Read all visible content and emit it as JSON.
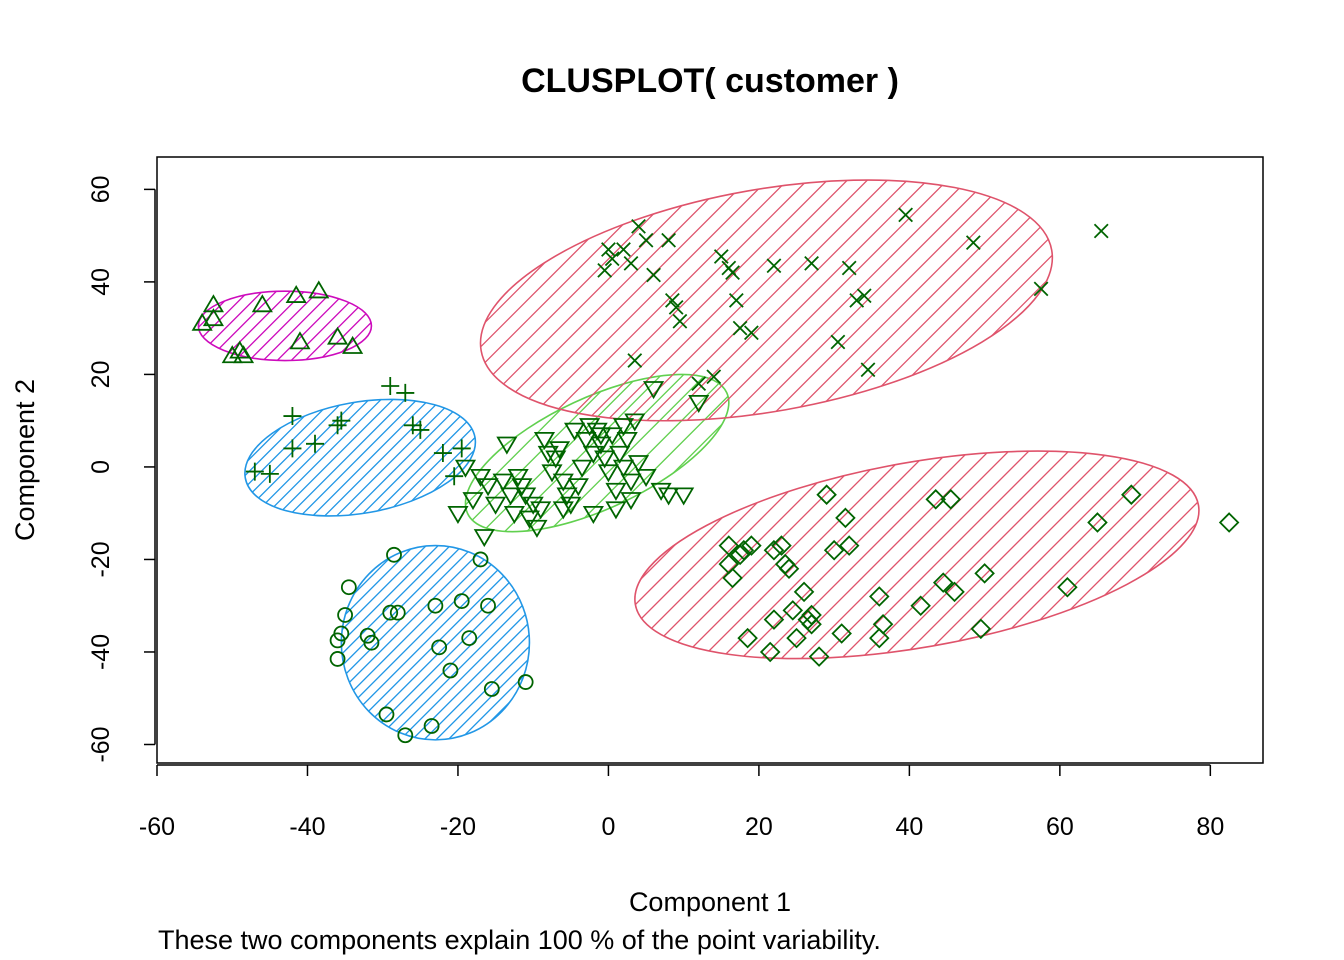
{
  "chart_data": {
    "type": "scatter",
    "title": "CLUSPLOT( customer )",
    "xlabel": "Component 1",
    "ylabel": "Component 2",
    "subtitle": "These two components explain 100 % of the point variability.",
    "xlim": [
      -60,
      87
    ],
    "ylim": [
      -64,
      67
    ],
    "xticks": [
      "-60",
      "-40",
      "-20",
      "0",
      "20",
      "40",
      "60",
      "80"
    ],
    "yticks": [
      "-60",
      "-40",
      "-20",
      "0",
      "20",
      "40",
      "60"
    ],
    "grid": false,
    "colors": {
      "point": "#006400",
      "red": "#DF536B",
      "magenta": "#CD0BBC",
      "blue": "#2297E6",
      "green": "#61D04F"
    },
    "clusters": [
      {
        "id": 1,
        "marker": "triangle",
        "shade_color": "#CD0BBC",
        "ellipse": {
          "cx": -43,
          "cy": 30.5,
          "rx": 11.5,
          "ry": 7.5,
          "angle": 0,
          "hatch": 14
        },
        "points": [
          [
            -54,
            31
          ],
          [
            -52.5,
            35
          ],
          [
            -52.5,
            32
          ],
          [
            -50,
            24
          ],
          [
            -49,
            25
          ],
          [
            -48.5,
            24
          ],
          [
            -46,
            35
          ],
          [
            -41.5,
            37
          ],
          [
            -41,
            27
          ],
          [
            -38.5,
            38
          ],
          [
            -36,
            28
          ],
          [
            -34,
            26
          ]
        ]
      },
      {
        "id": 2,
        "marker": "plus",
        "shade_color": "#2297E6",
        "ellipse": {
          "cx": -33,
          "cy": 2,
          "rx": 15.5,
          "ry": 12,
          "angle": 10,
          "hatch": 12
        },
        "points": [
          [
            -47,
            -1
          ],
          [
            -45,
            -1.5
          ],
          [
            -42,
            11
          ],
          [
            -42,
            4
          ],
          [
            -39,
            5
          ],
          [
            -36,
            9
          ],
          [
            -35.5,
            10
          ],
          [
            -29,
            17.5
          ],
          [
            -27,
            16
          ],
          [
            -26,
            9
          ],
          [
            -25,
            8
          ],
          [
            -22,
            3
          ],
          [
            -20.5,
            -2
          ],
          [
            -19.5,
            4
          ]
        ]
      },
      {
        "id": 3,
        "marker": "circle",
        "shade_color": "#2297E6",
        "ellipse": {
          "cx": -23,
          "cy": -38,
          "rx": 12.5,
          "ry": 21,
          "angle": 0,
          "hatch": 12
        },
        "points": [
          [
            -36,
            -37.5
          ],
          [
            -36,
            -41.5
          ],
          [
            -35.5,
            -36
          ],
          [
            -35,
            -32
          ],
          [
            -34.5,
            -26
          ],
          [
            -32,
            -36.5
          ],
          [
            -31.5,
            -38
          ],
          [
            -29.5,
            -53.5
          ],
          [
            -29,
            -31.5
          ],
          [
            -28.5,
            -19
          ],
          [
            -28,
            -31.5
          ],
          [
            -27,
            -58
          ],
          [
            -23.5,
            -56
          ],
          [
            -23,
            -30
          ],
          [
            -22.5,
            -39
          ],
          [
            -21,
            -44
          ],
          [
            -19.5,
            -29
          ],
          [
            -18.5,
            -37
          ],
          [
            -17,
            -20
          ],
          [
            -16,
            -30
          ],
          [
            -15.5,
            -48
          ],
          [
            -11,
            -46.5
          ]
        ]
      },
      {
        "id": 4,
        "marker": "triangle-down",
        "shade_color": "#61D04F",
        "ellipse": {
          "cx": -1.5,
          "cy": 3,
          "rx": 19,
          "ry": 12,
          "angle": 25,
          "hatch": 22
        },
        "points": [
          [
            -20,
            -10
          ],
          [
            -19,
            0
          ],
          [
            -18,
            -7
          ],
          [
            -17,
            -2
          ],
          [
            -16.5,
            -15
          ],
          [
            -16,
            -4
          ],
          [
            -15,
            -8
          ],
          [
            -14,
            -3
          ],
          [
            -13.5,
            5
          ],
          [
            -13,
            -6
          ],
          [
            -12.5,
            -10
          ],
          [
            -12,
            -2
          ],
          [
            -11.5,
            -4
          ],
          [
            -11,
            -6
          ],
          [
            -10.5,
            -11
          ],
          [
            -10,
            -8
          ],
          [
            -9.5,
            -13
          ],
          [
            -9,
            -9
          ],
          [
            -8.5,
            6
          ],
          [
            -8,
            3
          ],
          [
            -7.5,
            -1
          ],
          [
            -7,
            2
          ],
          [
            -6.5,
            4
          ],
          [
            -6,
            -3
          ],
          [
            -5.5,
            -6
          ],
          [
            -5,
            -8
          ],
          [
            -4.5,
            8
          ],
          [
            -4,
            -4
          ],
          [
            -3.5,
            0
          ],
          [
            -3,
            6
          ],
          [
            -2.5,
            9
          ],
          [
            -2,
            3
          ],
          [
            -1.5,
            8
          ],
          [
            -1,
            5
          ],
          [
            -0.5,
            2
          ],
          [
            0,
            -1
          ],
          [
            0.5,
            7
          ],
          [
            1,
            -5
          ],
          [
            1.5,
            3
          ],
          [
            2,
            0
          ],
          [
            2.5,
            6
          ],
          [
            3,
            -3
          ],
          [
            3.5,
            10
          ],
          [
            4,
            1
          ],
          [
            5,
            -2
          ],
          [
            6,
            17
          ],
          [
            7,
            -5
          ],
          [
            8,
            -6
          ],
          [
            10,
            -6
          ],
          [
            12,
            14
          ],
          [
            -2,
            -10
          ],
          [
            1,
            -9
          ],
          [
            3,
            -7
          ],
          [
            -6,
            -9
          ],
          [
            2,
            9
          ],
          [
            -1,
            7
          ]
        ]
      },
      {
        "id": 5,
        "marker": "x",
        "shade_color": "#DF536B",
        "ellipse": {
          "cx": 21,
          "cy": 36,
          "rx": 38.5,
          "ry": 24,
          "angle": 10,
          "hatch": 20
        },
        "points": [
          [
            -0.5,
            42.5
          ],
          [
            0,
            47
          ],
          [
            0.5,
            45
          ],
          [
            2,
            47
          ],
          [
            3,
            44
          ],
          [
            3.5,
            23
          ],
          [
            4,
            52
          ],
          [
            5,
            49
          ],
          [
            6,
            41.5
          ],
          [
            8,
            49
          ],
          [
            8.5,
            36
          ],
          [
            9,
            34.5
          ],
          [
            9.5,
            31.5
          ],
          [
            12,
            18
          ],
          [
            14,
            19.5
          ],
          [
            15,
            45.5
          ],
          [
            16,
            43
          ],
          [
            16.5,
            42
          ],
          [
            17,
            36
          ],
          [
            17.5,
            30
          ],
          [
            19,
            29
          ],
          [
            22,
            43.5
          ],
          [
            27,
            44
          ],
          [
            30.5,
            27
          ],
          [
            32,
            43
          ],
          [
            33,
            36
          ],
          [
            34,
            37
          ],
          [
            34.5,
            21
          ],
          [
            39.5,
            54.5
          ],
          [
            48.5,
            48.5
          ],
          [
            57.5,
            38.5
          ],
          [
            65.5,
            51
          ]
        ]
      },
      {
        "id": 6,
        "marker": "diamond",
        "shade_color": "#DF536B",
        "ellipse": {
          "cx": 41,
          "cy": -19,
          "rx": 38,
          "ry": 20,
          "angle": 10,
          "hatch": 20
        },
        "points": [
          [
            16,
            -17
          ],
          [
            16,
            -21
          ],
          [
            16.5,
            -24
          ],
          [
            17.5,
            -19
          ],
          [
            18,
            -18
          ],
          [
            18.5,
            -37
          ],
          [
            19,
            -17
          ],
          [
            21.5,
            -40
          ],
          [
            22,
            -18
          ],
          [
            22,
            -33
          ],
          [
            23,
            -17
          ],
          [
            23.5,
            -21
          ],
          [
            24,
            -22
          ],
          [
            24.5,
            -31
          ],
          [
            25,
            -37
          ],
          [
            26,
            -27
          ],
          [
            26.5,
            -33
          ],
          [
            27,
            -34
          ],
          [
            27,
            -32
          ],
          [
            28,
            -41
          ],
          [
            29,
            -6
          ],
          [
            30,
            -18
          ],
          [
            31,
            -36
          ],
          [
            31.5,
            -11
          ],
          [
            32,
            -17
          ],
          [
            36,
            -28
          ],
          [
            36,
            -37
          ],
          [
            36.5,
            -34
          ],
          [
            41.5,
            -30
          ],
          [
            43.5,
            -7
          ],
          [
            44.5,
            -25
          ],
          [
            45.5,
            -7
          ],
          [
            46,
            -27
          ],
          [
            49.5,
            -35
          ],
          [
            50,
            -23
          ],
          [
            61,
            -26
          ],
          [
            65,
            -12
          ],
          [
            69.5,
            -6
          ],
          [
            82.5,
            -12
          ]
        ]
      }
    ]
  }
}
